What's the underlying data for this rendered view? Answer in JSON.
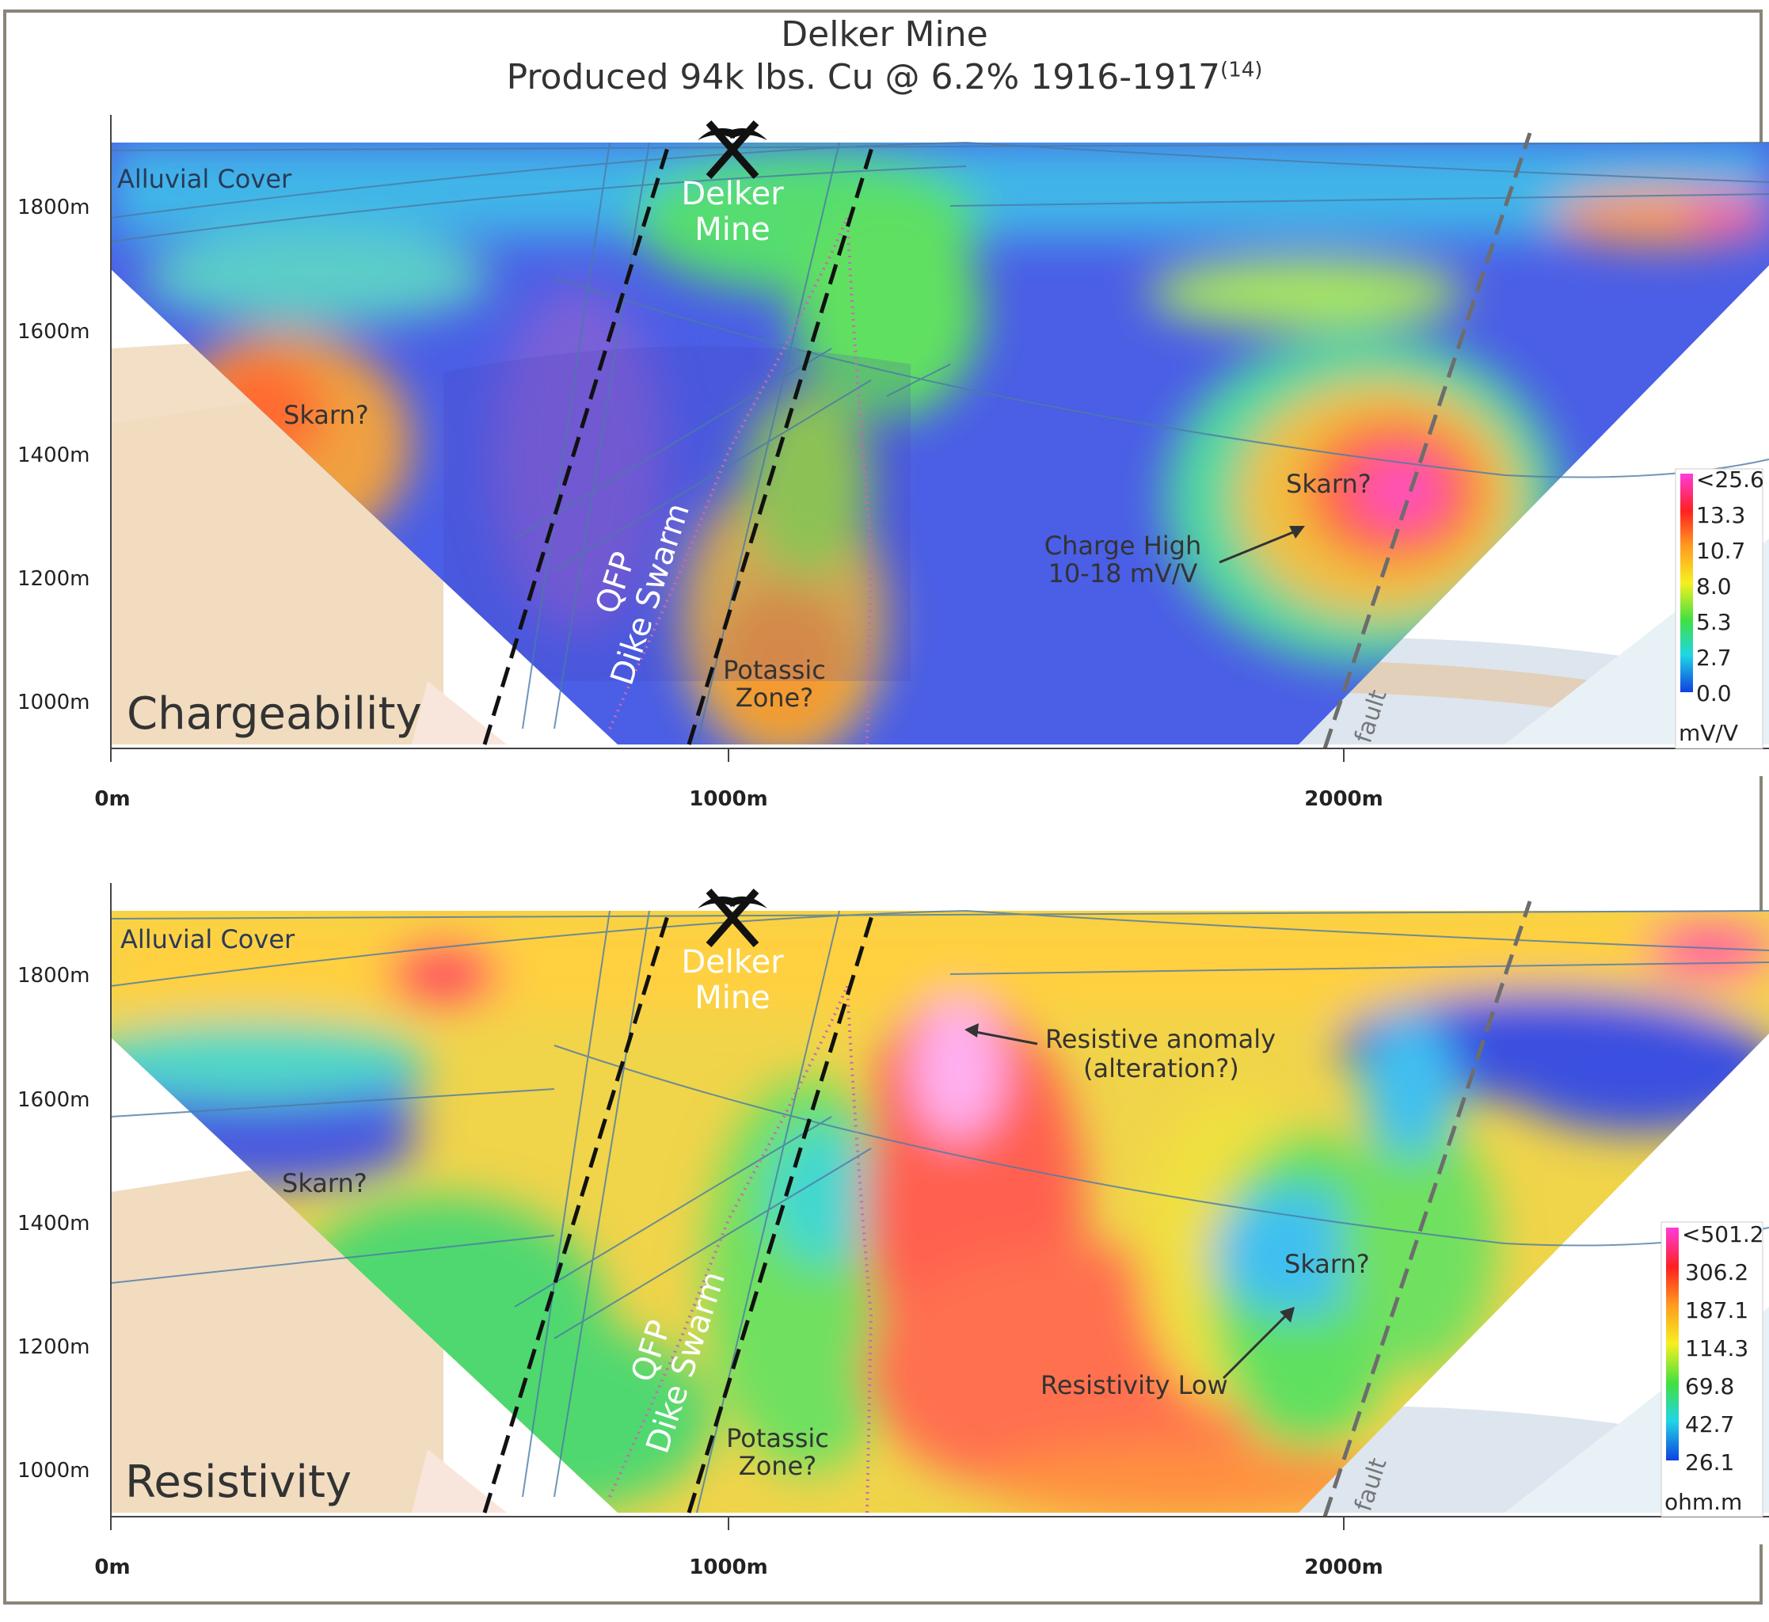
{
  "title": "Delker Mine",
  "subtitle": "Produced 94k lbs. Cu @ 6.2% 1916-1917",
  "subtitle_ref": "(14)",
  "panels": [
    {
      "name": "Chargeability",
      "mine_label_1": "Delker",
      "mine_label_2": "Mine",
      "alluvial": "Alluvial Cover",
      "skarn_left": "Skarn?",
      "skarn_right": "Skarn?",
      "dike_1": "QFP",
      "dike_2": "Dike Swarm",
      "potassic_1": "Potassic",
      "potassic_2": "Zone?",
      "note_1": "Charge High",
      "note_2": "10-18 mV/V",
      "fault": "fault",
      "y_ticks": [
        "1800m",
        "1600m",
        "1400m",
        "1200m",
        "1000m"
      ],
      "x_ticks": [
        "0m",
        "1000m",
        "2000m"
      ],
      "scale": {
        "labels": [
          "<25.6",
          "13.3",
          "10.7",
          "8.0",
          "5.3",
          "2.7",
          "0.0"
        ],
        "unit": "mV/V"
      }
    },
    {
      "name": "Resistivity",
      "mine_label_1": "Delker",
      "mine_label_2": "Mine",
      "alluvial": "Alluvial Cover",
      "skarn_left": "Skarn?",
      "skarn_right": "Skarn?",
      "dike_1": "QFP",
      "dike_2": "Dike Swarm",
      "potassic_1": "Potassic",
      "potassic_2": "Zone?",
      "note_1": "Resistive anomaly",
      "note_2": "(alteration?)",
      "note_3": "Resistivity Low",
      "fault": "fault",
      "y_ticks": [
        "1800m",
        "1600m",
        "1400m",
        "1200m",
        "1000m"
      ],
      "x_ticks": [
        "0m",
        "1000m",
        "2000m"
      ],
      "scale": {
        "labels": [
          "<501.2",
          "306.2",
          "187.1",
          "114.3",
          "69.8",
          "42.7",
          "26.1"
        ],
        "unit": "ohm.m"
      }
    }
  ],
  "colors": {
    "frame": "#8a8577",
    "skarn_body": "#f1dcc0",
    "dike_dash": "#111111",
    "fault_dash": "#6d6d6d",
    "potassic_outline": "#c86ab0"
  }
}
